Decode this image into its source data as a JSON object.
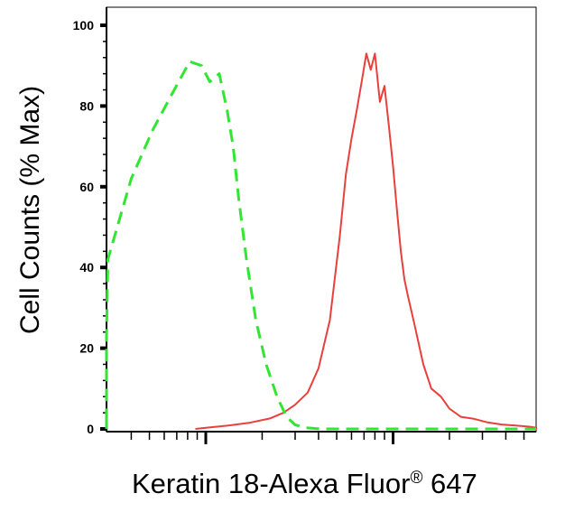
{
  "chart_data": {
    "type": "line",
    "title": "",
    "xlabel": "Keratin 18-Alexa Fluor",
    "xlabel_mark": "®",
    "xlabel_suffix": " 647",
    "ylabel": "Cell Counts (% Max)",
    "x_scale": "log",
    "ylim": [
      0,
      100
    ],
    "y_ticks": [
      0,
      20,
      40,
      60,
      80,
      100
    ],
    "y_tick_labels": [
      "0",
      "20",
      "40",
      "60",
      "80",
      "100"
    ],
    "grid": false,
    "legend": "none",
    "series": [
      {
        "color": "#e8403c",
        "style": "solid",
        "x": [
          88,
          100,
          130,
          170,
          220,
          260,
          300,
          350,
          400,
          460,
          520,
          560,
          600,
          640,
          680,
          720,
          760,
          800,
          850,
          900,
          950,
          1000,
          1050,
          1100,
          1150,
          1200,
          1300,
          1450,
          1600,
          1800,
          2000,
          2300,
          2700,
          3200,
          3800,
          4600,
          5500,
          6500,
          7800,
          9500,
          11500,
          14000,
          18000,
          25000,
          40000,
          60000,
          100000,
          200000
        ],
        "y": [
          0,
          0.3,
          0.8,
          1.5,
          2.6,
          4,
          6,
          9,
          15,
          27,
          48,
          63,
          72,
          79,
          86,
          93,
          89,
          93,
          81,
          85,
          75,
          65,
          54,
          44,
          37,
          33,
          26,
          16,
          10,
          8,
          5,
          3,
          2.5,
          1.6,
          1.1,
          0.8,
          0.5,
          0.3,
          0.2,
          0.1,
          0.1,
          0.1,
          0.1,
          0.1,
          0.1,
          0.1,
          0.1,
          0.5
        ]
      },
      {
        "color": "#33e533",
        "style": "dashed",
        "x": [
          1,
          1.5,
          2,
          3,
          5,
          8,
          11,
          16,
          22,
          30,
          40,
          52,
          66,
          82,
          95,
          105,
          118,
          130,
          140,
          150,
          165,
          185,
          210,
          240,
          270,
          300,
          340,
          390,
          450,
          550,
          700,
          1000,
          2000,
          5000,
          20000
        ],
        "y": [
          0,
          1,
          2,
          1.5,
          0.5,
          2.5,
          6,
          12,
          23,
          42,
          62,
          74,
          83,
          91,
          90,
          86,
          88,
          79,
          70,
          57,
          42,
          27,
          16,
          8,
          3,
          1,
          0.3,
          0.1,
          0,
          0,
          0,
          0,
          0,
          0,
          0
        ]
      }
    ]
  }
}
